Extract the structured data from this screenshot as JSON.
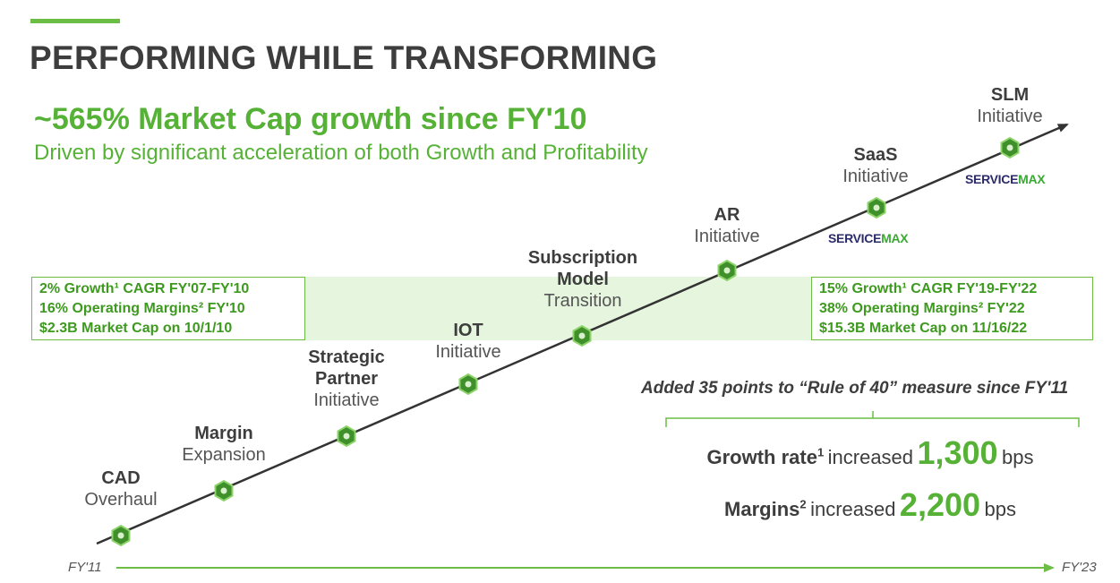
{
  "header": {
    "title": "PERFORMING WHILE TRANSFORMING",
    "headline": "~565% Market Cap growth since FY'10",
    "subhead": "Driven by significant acceleration of both Growth and Profitability"
  },
  "left_box": {
    "line1": "2% Growth¹ CAGR FY'07-FY'10",
    "line2": "16% Operating Margins² FY'10",
    "line3": "$2.3B Market Cap on 10/1/10"
  },
  "right_box": {
    "line1": "15% Growth¹ CAGR FY'19-FY'22",
    "line2": "38% Operating Margins² FY'22",
    "line3": "$15.3B Market Cap on 11/16/22"
  },
  "milestones": [
    {
      "name": "CAD",
      "desc": "Overhaul"
    },
    {
      "name": "Margin",
      "desc": "Expansion"
    },
    {
      "name": "Strategic Partner",
      "desc": "Initiative"
    },
    {
      "name": "IOT",
      "desc": "Initiative"
    },
    {
      "name": "Subscription Model",
      "desc": "Transition"
    },
    {
      "name": "AR",
      "desc": "Initiative"
    },
    {
      "name": "SaaS",
      "desc": "Initiative"
    },
    {
      "name": "SLM",
      "desc": "Initiative"
    }
  ],
  "logos": {
    "service": "SERVICE",
    "max": "MAX"
  },
  "rule_of_40": {
    "title": "Added 35 points to “Rule of 40” measure since FY'11",
    "growth": {
      "label": "Growth rate",
      "sup": "1",
      "verb": "increased",
      "value": "1,300",
      "unit": "bps"
    },
    "margins": {
      "label": "Margins",
      "sup": "2",
      "verb": "increased",
      "value": "2,200",
      "unit": "bps"
    }
  },
  "timeline": {
    "start": "FY'11",
    "end": "FY'23"
  },
  "colors": {
    "accent_green": "#56b236",
    "band": "#e6f5de",
    "node_fill": "#3f8f2b",
    "logo_navy": "#2b2b6b"
  }
}
